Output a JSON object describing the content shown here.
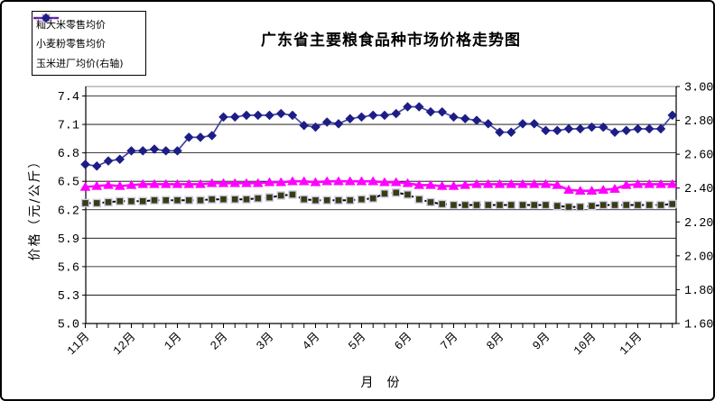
{
  "title": "广东省主要粮食品种市场价格走势图",
  "chart_data": {
    "type": "line",
    "title": "广东省主要粮食品种市场价格走势图",
    "x_axis": {
      "title": "月  份",
      "months": [
        "11月",
        "12月",
        "1月",
        "2月",
        "3月",
        "4月",
        "5月",
        "6月",
        "7月",
        "8月",
        "9月",
        "10月",
        "11月"
      ],
      "points_per_month": 4
    },
    "left_axis": {
      "title": "价格（元/公斤）",
      "ticks": [
        "5.0",
        "5.3",
        "5.6",
        "5.9",
        "6.2",
        "6.5",
        "6.8",
        "7.1",
        "7.4"
      ],
      "min": 5.0,
      "max": 7.5,
      "grid": true
    },
    "right_axis": {
      "ticks": [
        "1.60",
        "1.80",
        "2.00",
        "2.20",
        "2.40",
        "2.60",
        "2.80",
        "3.00"
      ],
      "min": 1.6,
      "max": 3.0
    },
    "series": [
      {
        "name": "籼大米零售均价",
        "axis": "left",
        "marker": "triangle",
        "line": "solid",
        "color": "#FF00FF",
        "marker_fill": "#FF00FF",
        "marker_stroke": "#FF00FF",
        "values": [
          6.44,
          6.45,
          6.46,
          6.45,
          6.46,
          6.47,
          6.47,
          6.47,
          6.47,
          6.47,
          6.47,
          6.48,
          6.48,
          6.48,
          6.48,
          6.48,
          6.49,
          6.49,
          6.5,
          6.5,
          6.49,
          6.5,
          6.5,
          6.5,
          6.5,
          6.5,
          6.49,
          6.49,
          6.48,
          6.46,
          6.46,
          6.45,
          6.45,
          6.46,
          6.47,
          6.47,
          6.47,
          6.47,
          6.47,
          6.47,
          6.47,
          6.46,
          6.41,
          6.4,
          6.4,
          6.41,
          6.42,
          6.46,
          6.47,
          6.47,
          6.47,
          6.47
        ]
      },
      {
        "name": "小麦粉零售均价",
        "axis": "left",
        "marker": "square",
        "line": "dashed",
        "color": "#000000",
        "marker_fill": "#3B3B12",
        "marker_stroke": "#CACAE8",
        "values": [
          6.27,
          6.27,
          6.28,
          6.29,
          6.29,
          6.29,
          6.3,
          6.3,
          6.3,
          6.3,
          6.3,
          6.31,
          6.31,
          6.31,
          6.31,
          6.32,
          6.33,
          6.35,
          6.36,
          6.31,
          6.3,
          6.3,
          6.3,
          6.3,
          6.31,
          6.32,
          6.37,
          6.38,
          6.36,
          6.31,
          6.28,
          6.26,
          6.25,
          6.25,
          6.25,
          6.25,
          6.25,
          6.25,
          6.25,
          6.25,
          6.25,
          6.24,
          6.23,
          6.23,
          6.24,
          6.25,
          6.25,
          6.25,
          6.25,
          6.25,
          6.25,
          6.26
        ]
      },
      {
        "name": "玉米进厂均价(右轴)",
        "axis": "right",
        "marker": "diamond",
        "line": "solid",
        "color": "#4343A5",
        "marker_fill": "#1D1D87",
        "marker_stroke": "#1D1D87",
        "values": [
          2.54,
          2.53,
          2.56,
          2.57,
          2.62,
          2.62,
          2.63,
          2.62,
          2.62,
          2.7,
          2.7,
          2.71,
          2.82,
          2.82,
          2.83,
          2.83,
          2.83,
          2.84,
          2.83,
          2.77,
          2.76,
          2.79,
          2.78,
          2.81,
          2.82,
          2.83,
          2.83,
          2.84,
          2.88,
          2.88,
          2.85,
          2.85,
          2.82,
          2.81,
          2.8,
          2.78,
          2.73,
          2.73,
          2.78,
          2.78,
          2.74,
          2.74,
          2.75,
          2.75,
          2.76,
          2.76,
          2.73,
          2.74,
          2.75,
          2.75,
          2.75,
          2.83
        ]
      }
    ]
  }
}
